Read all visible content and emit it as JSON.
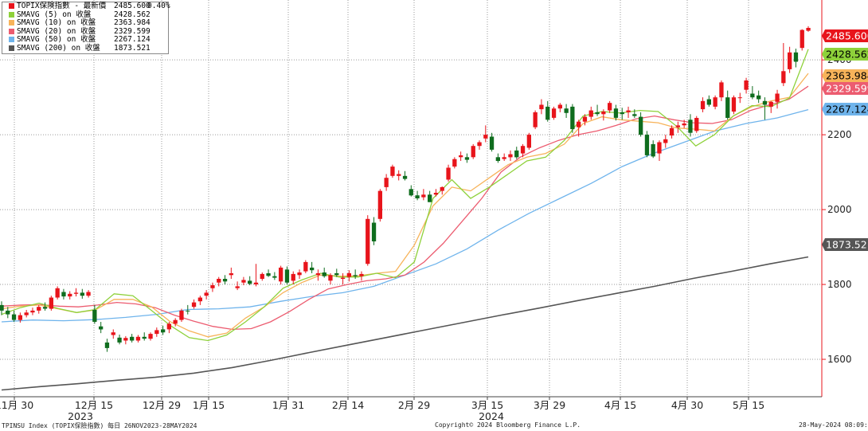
{
  "legend": {
    "price": {
      "label": "TOPIX保険指數 - 最新價",
      "value": "2485.600",
      "change": "0.40%",
      "color": "#e8141b"
    },
    "sma5": {
      "label": "SMAVG (5)  on 收盤",
      "value": "2428.562",
      "color": "#8ed13a"
    },
    "sma10": {
      "label": "SMAVG (10)  on 收盤",
      "value": "2363.984",
      "color": "#f7b35a"
    },
    "sma20": {
      "label": "SMAVG (20)  on 收盤",
      "value": "2329.599",
      "color": "#ec5c70"
    },
    "sma50": {
      "label": "SMAVG (50)  on 收盤",
      "value": "2267.124",
      "color": "#6fb4ec"
    },
    "sma200": {
      "label": "SMAVG (200)  on 收盤",
      "value": "1873.521",
      "color": "#555555"
    }
  },
  "footer": {
    "left": "TPINSU Index (TOPIX保險指數) 每日 26NOV2023-28MAY2024",
    "center": "Copyright© 2024 Bloomberg Finance L.P.",
    "right": "28-May-2024 08:09:32"
  },
  "chart_data": {
    "type": "candlestick",
    "y_axis": {
      "range": [
        1500,
        2560
      ],
      "ticks": [
        1600,
        1800,
        2000,
        2200,
        2400
      ],
      "side": "right"
    },
    "x_tick_labels": [
      "11月 30",
      "12月 15",
      "12月 29",
      "1月 15",
      "1月 31",
      "2月 14",
      "2月 29",
      "3月 15",
      "3月 29",
      "4月 15",
      "4月 30",
      "5月 15"
    ],
    "year_labels": [
      {
        "label": "2023",
        "after": "12月 15"
      },
      {
        "label": "2024",
        "after": "3月 15"
      }
    ],
    "last_value_tags": [
      {
        "value": "2485.600",
        "color": "#e8141b",
        "text_color": "#ffffff"
      },
      {
        "value": "2428.562",
        "color": "#8ed13a",
        "text_color": "#000000"
      },
      {
        "value": "2363.984",
        "color": "#f7b35a",
        "text_color": "#000000"
      },
      {
        "value": "2329.599",
        "color": "#ec5c70",
        "text_color": "#ffffff"
      },
      {
        "value": "2267.124",
        "color": "#6fb4ec",
        "text_color": "#000000"
      },
      {
        "value": "1873.521",
        "color": "#555555",
        "text_color": "#ffffff"
      }
    ],
    "candles": [
      {
        "o": 1745,
        "h": 1755,
        "l": 1718,
        "c": 1730
      },
      {
        "o": 1730,
        "h": 1740,
        "l": 1710,
        "c": 1720
      },
      {
        "o": 1720,
        "h": 1730,
        "l": 1700,
        "c": 1705
      },
      {
        "o": 1705,
        "h": 1725,
        "l": 1698,
        "c": 1718
      },
      {
        "o": 1718,
        "h": 1732,
        "l": 1712,
        "c": 1725
      },
      {
        "o": 1725,
        "h": 1738,
        "l": 1718,
        "c": 1730
      },
      {
        "o": 1730,
        "h": 1745,
        "l": 1722,
        "c": 1740
      },
      {
        "o": 1740,
        "h": 1752,
        "l": 1730,
        "c": 1735
      },
      {
        "o": 1735,
        "h": 1770,
        "l": 1730,
        "c": 1765
      },
      {
        "o": 1765,
        "h": 1795,
        "l": 1760,
        "c": 1790
      },
      {
        "o": 1780,
        "h": 1788,
        "l": 1760,
        "c": 1768
      },
      {
        "o": 1768,
        "h": 1782,
        "l": 1760,
        "c": 1775
      },
      {
        "o": 1775,
        "h": 1790,
        "l": 1768,
        "c": 1778
      },
      {
        "o": 1778,
        "h": 1788,
        "l": 1762,
        "c": 1770
      },
      {
        "o": 1770,
        "h": 1785,
        "l": 1765,
        "c": 1780
      },
      {
        "o": 1732,
        "h": 1745,
        "l": 1695,
        "c": 1700
      },
      {
        "o": 1688,
        "h": 1700,
        "l": 1670,
        "c": 1680
      },
      {
        "o": 1645,
        "h": 1655,
        "l": 1620,
        "c": 1630
      },
      {
        "o": 1665,
        "h": 1680,
        "l": 1655,
        "c": 1672
      },
      {
        "o": 1658,
        "h": 1666,
        "l": 1640,
        "c": 1645
      },
      {
        "o": 1650,
        "h": 1662,
        "l": 1640,
        "c": 1657
      },
      {
        "o": 1660,
        "h": 1668,
        "l": 1645,
        "c": 1650
      },
      {
        "o": 1650,
        "h": 1665,
        "l": 1645,
        "c": 1660
      },
      {
        "o": 1660,
        "h": 1672,
        "l": 1650,
        "c": 1655
      },
      {
        "o": 1655,
        "h": 1672,
        "l": 1650,
        "c": 1668
      },
      {
        "o": 1668,
        "h": 1685,
        "l": 1660,
        "c": 1678
      },
      {
        "o": 1680,
        "h": 1690,
        "l": 1665,
        "c": 1672
      },
      {
        "o": 1680,
        "h": 1700,
        "l": 1670,
        "c": 1695
      },
      {
        "o": 1695,
        "h": 1710,
        "l": 1688,
        "c": 1705
      },
      {
        "o": 1705,
        "h": 1735,
        "l": 1700,
        "c": 1730
      },
      {
        "o": 1730,
        "h": 1745,
        "l": 1720,
        "c": 1728
      },
      {
        "o": 1740,
        "h": 1760,
        "l": 1735,
        "c": 1752
      },
      {
        "o": 1755,
        "h": 1770,
        "l": 1745,
        "c": 1765
      },
      {
        "o": 1770,
        "h": 1785,
        "l": 1760,
        "c": 1778
      },
      {
        "o": 1790,
        "h": 1805,
        "l": 1780,
        "c": 1798
      },
      {
        "o": 1805,
        "h": 1820,
        "l": 1795,
        "c": 1815
      },
      {
        "o": 1815,
        "h": 1825,
        "l": 1800,
        "c": 1808
      },
      {
        "o": 1825,
        "h": 1845,
        "l": 1815,
        "c": 1830
      },
      {
        "o": 1790,
        "h": 1808,
        "l": 1785,
        "c": 1795
      },
      {
        "o": 1805,
        "h": 1820,
        "l": 1798,
        "c": 1812
      },
      {
        "o": 1810,
        "h": 1822,
        "l": 1798,
        "c": 1802
      },
      {
        "o": 1800,
        "h": 1855,
        "l": 1795,
        "c": 1805
      },
      {
        "o": 1815,
        "h": 1832,
        "l": 1810,
        "c": 1828
      },
      {
        "o": 1830,
        "h": 1840,
        "l": 1820,
        "c": 1823
      },
      {
        "o": 1822,
        "h": 1833,
        "l": 1812,
        "c": 1818
      },
      {
        "o": 1808,
        "h": 1850,
        "l": 1800,
        "c": 1845
      },
      {
        "o": 1840,
        "h": 1848,
        "l": 1800,
        "c": 1805
      },
      {
        "o": 1810,
        "h": 1835,
        "l": 1800,
        "c": 1828
      },
      {
        "o": 1825,
        "h": 1840,
        "l": 1815,
        "c": 1832
      },
      {
        "o": 1835,
        "h": 1865,
        "l": 1830,
        "c": 1860
      },
      {
        "o": 1845,
        "h": 1860,
        "l": 1830,
        "c": 1838
      },
      {
        "o": 1825,
        "h": 1840,
        "l": 1810,
        "c": 1830
      },
      {
        "o": 1832,
        "h": 1845,
        "l": 1818,
        "c": 1822
      },
      {
        "o": 1810,
        "h": 1830,
        "l": 1800,
        "c": 1825
      },
      {
        "o": 1830,
        "h": 1842,
        "l": 1820,
        "c": 1825
      },
      {
        "o": 1815,
        "h": 1830,
        "l": 1800,
        "c": 1818
      },
      {
        "o": 1820,
        "h": 1838,
        "l": 1808,
        "c": 1830
      },
      {
        "o": 1825,
        "h": 1840,
        "l": 1815,
        "c": 1822
      },
      {
        "o": 1822,
        "h": 1835,
        "l": 1810,
        "c": 1828
      },
      {
        "o": 1855,
        "h": 1985,
        "l": 1850,
        "c": 1975
      },
      {
        "o": 1965,
        "h": 1980,
        "l": 1905,
        "c": 1915
      },
      {
        "o": 1975,
        "h": 2055,
        "l": 1968,
        "c": 2050
      },
      {
        "o": 2060,
        "h": 2095,
        "l": 2050,
        "c": 2085
      },
      {
        "o": 2090,
        "h": 2120,
        "l": 2085,
        "c": 2115
      },
      {
        "o": 2090,
        "h": 2105,
        "l": 2078,
        "c": 2095
      },
      {
        "o": 2090,
        "h": 2103,
        "l": 2078,
        "c": 2082
      },
      {
        "o": 2055,
        "h": 2065,
        "l": 2035,
        "c": 2038
      },
      {
        "o": 2038,
        "h": 2050,
        "l": 2025,
        "c": 2030
      },
      {
        "o": 2033,
        "h": 2055,
        "l": 2025,
        "c": 2040
      },
      {
        "o": 2040,
        "h": 2050,
        "l": 2020,
        "c": 2020
      },
      {
        "o": 2040,
        "h": 2055,
        "l": 2035,
        "c": 2045
      },
      {
        "o": 2050,
        "h": 2062,
        "l": 2040,
        "c": 2060
      },
      {
        "o": 2080,
        "h": 2120,
        "l": 2075,
        "c": 2112
      },
      {
        "o": 2115,
        "h": 2140,
        "l": 2110,
        "c": 2135
      },
      {
        "o": 2140,
        "h": 2155,
        "l": 2130,
        "c": 2145
      },
      {
        "o": 2140,
        "h": 2150,
        "l": 2125,
        "c": 2133
      },
      {
        "o": 2140,
        "h": 2175,
        "l": 2135,
        "c": 2170
      },
      {
        "o": 2170,
        "h": 2185,
        "l": 2160,
        "c": 2180
      },
      {
        "o": 2190,
        "h": 2225,
        "l": 2180,
        "c": 2200
      },
      {
        "o": 2195,
        "h": 2205,
        "l": 2155,
        "c": 2160
      },
      {
        "o": 2140,
        "h": 2150,
        "l": 2125,
        "c": 2130
      },
      {
        "o": 2135,
        "h": 2150,
        "l": 2130,
        "c": 2140
      },
      {
        "o": 2140,
        "h": 2158,
        "l": 2130,
        "c": 2148
      },
      {
        "o": 2158,
        "h": 2168,
        "l": 2135,
        "c": 2140
      },
      {
        "o": 2150,
        "h": 2175,
        "l": 2140,
        "c": 2170
      },
      {
        "o": 2165,
        "h": 2205,
        "l": 2160,
        "c": 2200
      },
      {
        "o": 2220,
        "h": 2265,
        "l": 2215,
        "c": 2260
      },
      {
        "o": 2268,
        "h": 2295,
        "l": 2255,
        "c": 2280
      },
      {
        "o": 2275,
        "h": 2290,
        "l": 2235,
        "c": 2240
      },
      {
        "o": 2245,
        "h": 2275,
        "l": 2240,
        "c": 2270
      },
      {
        "o": 2270,
        "h": 2285,
        "l": 2260,
        "c": 2280
      },
      {
        "o": 2270,
        "h": 2282,
        "l": 2245,
        "c": 2258
      },
      {
        "o": 2275,
        "h": 2282,
        "l": 2205,
        "c": 2215
      },
      {
        "o": 2220,
        "h": 2240,
        "l": 2195,
        "c": 2235
      },
      {
        "o": 2235,
        "h": 2255,
        "l": 2225,
        "c": 2248
      },
      {
        "o": 2248,
        "h": 2275,
        "l": 2240,
        "c": 2265
      },
      {
        "o": 2260,
        "h": 2280,
        "l": 2250,
        "c": 2255
      },
      {
        "o": 2255,
        "h": 2268,
        "l": 2238,
        "c": 2262
      },
      {
        "o": 2265,
        "h": 2290,
        "l": 2258,
        "c": 2285
      },
      {
        "o": 2270,
        "h": 2280,
        "l": 2238,
        "c": 2245
      },
      {
        "o": 2260,
        "h": 2272,
        "l": 2240,
        "c": 2255
      },
      {
        "o": 2260,
        "h": 2275,
        "l": 2245,
        "c": 2265
      },
      {
        "o": 2255,
        "h": 2268,
        "l": 2245,
        "c": 2250
      },
      {
        "o": 2248,
        "h": 2260,
        "l": 2195,
        "c": 2200
      },
      {
        "o": 2200,
        "h": 2210,
        "l": 2140,
        "c": 2145
      },
      {
        "o": 2175,
        "h": 2185,
        "l": 2138,
        "c": 2142
      },
      {
        "o": 2150,
        "h": 2185,
        "l": 2130,
        "c": 2180
      },
      {
        "o": 2178,
        "h": 2200,
        "l": 2165,
        "c": 2188
      },
      {
        "o": 2198,
        "h": 2225,
        "l": 2190,
        "c": 2218
      },
      {
        "o": 2220,
        "h": 2235,
        "l": 2205,
        "c": 2225
      },
      {
        "o": 2225,
        "h": 2240,
        "l": 2218,
        "c": 2230
      },
      {
        "o": 2240,
        "h": 2255,
        "l": 2195,
        "c": 2205
      },
      {
        "o": 2210,
        "h": 2250,
        "l": 2205,
        "c": 2245
      },
      {
        "o": 2268,
        "h": 2300,
        "l": 2260,
        "c": 2290
      },
      {
        "o": 2295,
        "h": 2305,
        "l": 2275,
        "c": 2280
      },
      {
        "o": 2275,
        "h": 2305,
        "l": 2268,
        "c": 2300
      },
      {
        "o": 2300,
        "h": 2345,
        "l": 2290,
        "c": 2340
      },
      {
        "o": 2300,
        "h": 2318,
        "l": 2240,
        "c": 2245
      },
      {
        "o": 2262,
        "h": 2305,
        "l": 2255,
        "c": 2300
      },
      {
        "o": 2300,
        "h": 2312,
        "l": 2285,
        "c": 2300
      },
      {
        "o": 2320,
        "h": 2352,
        "l": 2310,
        "c": 2345
      },
      {
        "o": 2310,
        "h": 2330,
        "l": 2295,
        "c": 2300
      },
      {
        "o": 2305,
        "h": 2318,
        "l": 2285,
        "c": 2295
      },
      {
        "o": 2290,
        "h": 2300,
        "l": 2240,
        "c": 2280
      },
      {
        "o": 2275,
        "h": 2290,
        "l": 2258,
        "c": 2288
      },
      {
        "o": 2288,
        "h": 2320,
        "l": 2270,
        "c": 2310
      },
      {
        "o": 2338,
        "h": 2445,
        "l": 2330,
        "c": 2370
      },
      {
        "o": 2375,
        "h": 2435,
        "l": 2365,
        "c": 2420
      },
      {
        "o": 2420,
        "h": 2430,
        "l": 2380,
        "c": 2395
      },
      {
        "o": 2432,
        "h": 2482,
        "l": 2425,
        "c": 2480
      },
      {
        "o": 2478,
        "h": 2490,
        "l": 2475,
        "c": 2485.6
      }
    ],
    "moving_averages": [
      {
        "name": "SMAVG (200)",
        "color": "#555555",
        "x_start": 0,
        "values": [
          1518,
          1527,
          1535,
          1544,
          1552,
          1563,
          1578,
          1597,
          1618,
          1638,
          1658,
          1678,
          1698,
          1718,
          1737,
          1757,
          1776,
          1795,
          1816,
          1835,
          1855,
          1873.521
        ]
      },
      {
        "name": "SMAVG (50)",
        "color": "#6fb4ec",
        "x_start": 0,
        "values": [
          1700,
          1705,
          1703,
          1706,
          1712,
          1720,
          1733,
          1735,
          1740,
          1755,
          1768,
          1778,
          1795,
          1825,
          1855,
          1895,
          1945,
          1990,
          2030,
          2070,
          2115,
          2150,
          2180,
          2210,
          2230,
          2245,
          2267.124
        ]
      },
      {
        "name": "SMAVG (20)",
        "color": "#ec5c70",
        "x_start": 0,
        "values": [
          1742,
          1745,
          1746,
          1742,
          1740,
          1745,
          1752,
          1748,
          1738,
          1718,
          1702,
          1688,
          1680,
          1682,
          1700,
          1728,
          1760,
          1788,
          1800,
          1810,
          1815,
          1825,
          1860,
          1910,
          1970,
          2030,
          2100,
          2140,
          2165,
          2185,
          2200,
          2210,
          2225,
          2242,
          2250,
          2240,
          2232,
          2230,
          2240,
          2265,
          2280,
          2295,
          2329.599
        ]
      },
      {
        "name": "SMAVG (10)",
        "color": "#f7b35a",
        "x_start": 0,
        "values": [
          1735,
          1742,
          1745,
          1735,
          1725,
          1732,
          1760,
          1760,
          1740,
          1700,
          1676,
          1660,
          1670,
          1710,
          1740,
          1778,
          1805,
          1825,
          1822,
          1823,
          1830,
          1835,
          1905,
          2010,
          2060,
          2050,
          2085,
          2120,
          2140,
          2150,
          2175,
          2230,
          2248,
          2240,
          2236,
          2232,
          2218,
          2215,
          2210,
          2250,
          2275,
          2290,
          2300,
          2363.984
        ]
      },
      {
        "name": "SMAVG (5)",
        "color": "#8ed13a",
        "x_start": 0,
        "values": [
          1720,
          1738,
          1750,
          1736,
          1725,
          1733,
          1775,
          1770,
          1730,
          1690,
          1658,
          1650,
          1665,
          1700,
          1740,
          1790,
          1812,
          1830,
          1820,
          1820,
          1830,
          1818,
          1860,
          2030,
          2080,
          2030,
          2060,
          2095,
          2130,
          2140,
          2185,
          2250,
          2262,
          2258,
          2265,
          2262,
          2222,
          2170,
          2200,
          2250,
          2278,
          2275,
          2298,
          2428.562
        ]
      }
    ]
  }
}
